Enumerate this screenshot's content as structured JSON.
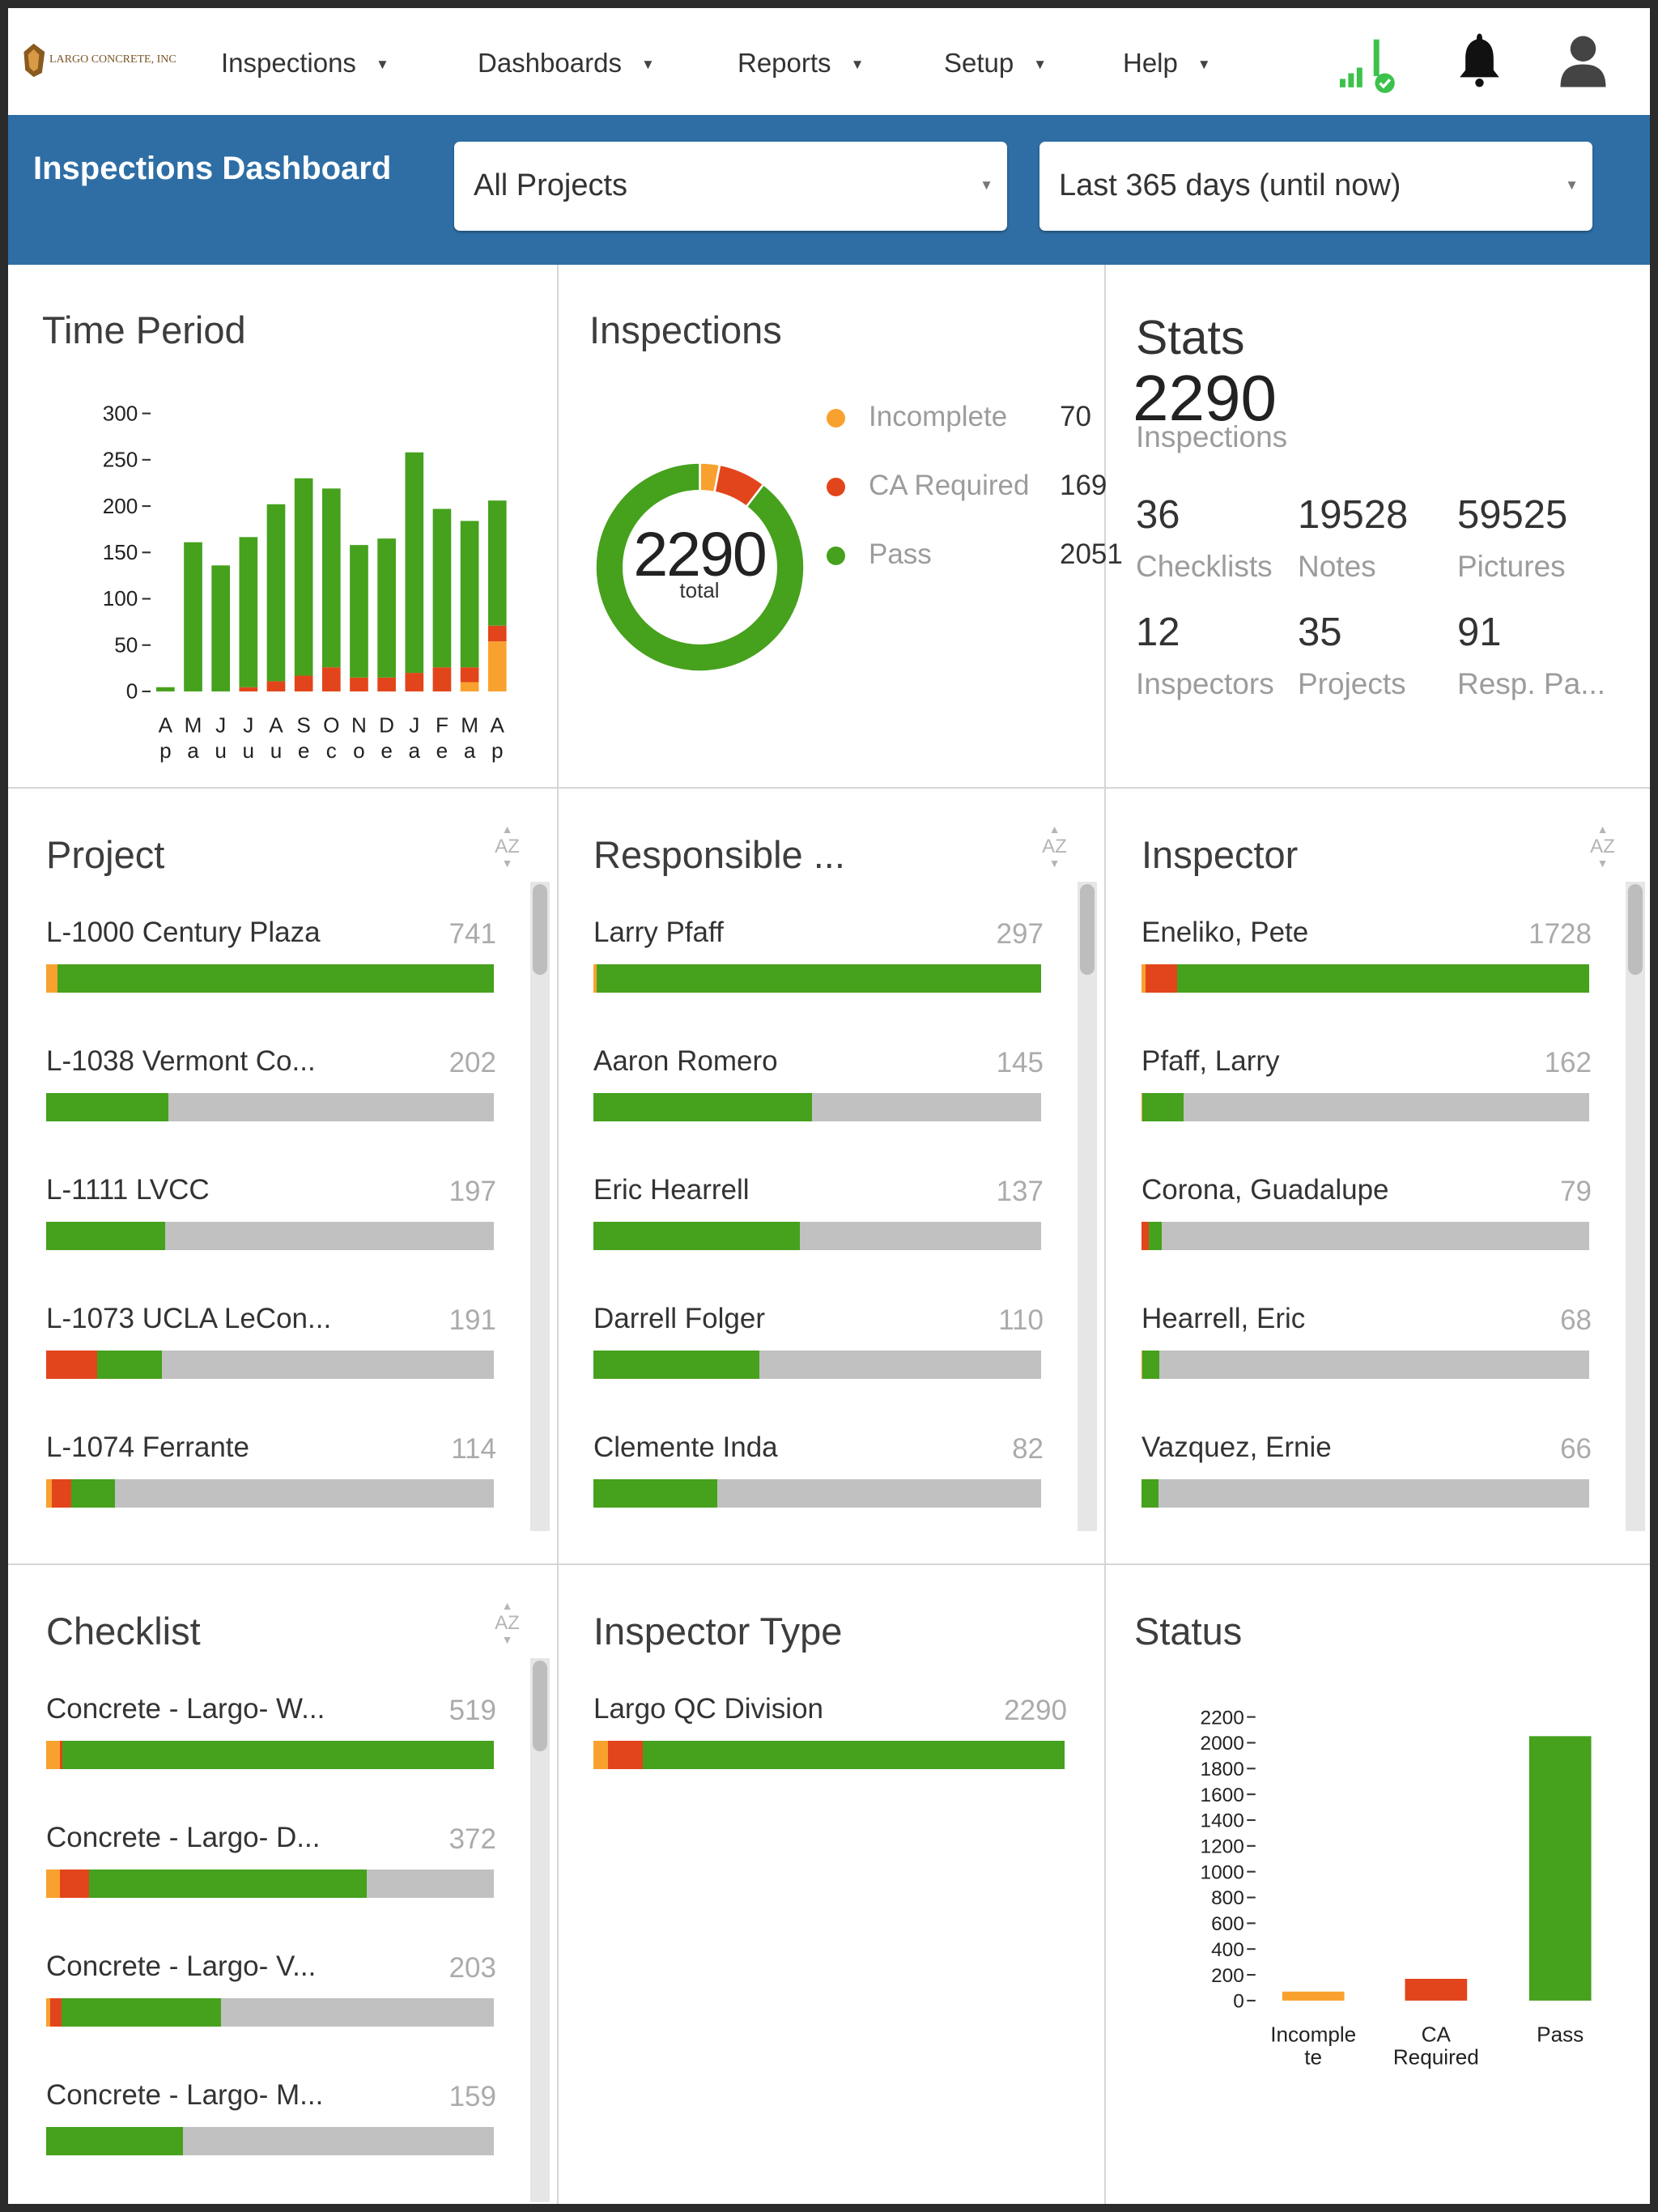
{
  "nav": {
    "logo_text": "LARGO CONCRETE, INC",
    "menu": [
      {
        "label": "Inspections"
      },
      {
        "label": "Dashboards"
      },
      {
        "label": "Reports"
      },
      {
        "label": "Setup"
      },
      {
        "label": "Help"
      }
    ],
    "icons": [
      "signal-check-icon",
      "bell-icon",
      "user-icon"
    ]
  },
  "header": {
    "title": "Inspections Dashboard",
    "project_select": "All Projects",
    "period_select": "Last 365 days (until now)"
  },
  "colors": {
    "incomplete": "#f9a12e",
    "ca_required": "#e2451b",
    "pass": "#46a11d",
    "bar_bg": "#c1c1c1",
    "header": "#2e6ea5"
  },
  "time_period": {
    "title": "Time Period",
    "chart_data": {
      "type": "bar",
      "stacked": true,
      "categories": [
        "Ap",
        "Ma",
        "Ju",
        "Ju",
        "Au",
        "Se",
        "Oc",
        "No",
        "De",
        "Ja",
        "Fe",
        "Ma",
        "Ap"
      ],
      "yticks": [
        0,
        50,
        100,
        150,
        200,
        250,
        300
      ],
      "ylim": [
        0,
        300
      ],
      "series": [
        {
          "name": "Incomplete",
          "values": [
            0,
            0,
            0,
            0,
            0,
            0,
            0,
            0,
            0,
            0,
            0,
            10,
            54
          ]
        },
        {
          "name": "CA Required",
          "values": [
            0,
            0,
            0,
            1,
            11,
            17,
            26,
            15,
            15,
            20,
            26,
            16,
            17
          ]
        },
        {
          "name": "Pass",
          "values": [
            2,
            161,
            136,
            162,
            191,
            213,
            193,
            143,
            150,
            238,
            171,
            158,
            135
          ]
        }
      ]
    }
  },
  "inspections": {
    "title": "Inspections",
    "total": "2290",
    "total_label": "total",
    "chart_data": {
      "type": "pie",
      "donut": true,
      "slices": [
        {
          "name": "Incomplete",
          "value": 70
        },
        {
          "name": "CA Required",
          "value": 169
        },
        {
          "name": "Pass",
          "value": 2051
        }
      ]
    },
    "legend": [
      {
        "label": "Incomplete",
        "value": "70"
      },
      {
        "label": "CA Required",
        "value": "169"
      },
      {
        "label": "Pass",
        "value": "2051"
      }
    ]
  },
  "stats": {
    "title": "Stats",
    "main_value": "2290",
    "main_label": "Inspections",
    "items": [
      {
        "value": "36",
        "label": "Checklists"
      },
      {
        "value": "19528",
        "label": "Notes"
      },
      {
        "value": "59525",
        "label": "Pictures"
      },
      {
        "value": "12",
        "label": "Inspectors"
      },
      {
        "value": "35",
        "label": "Projects"
      },
      {
        "value": "91",
        "label": "Resp. Pa..."
      }
    ]
  },
  "lists": [
    {
      "key": "project",
      "title": "Project",
      "sort_icon": "AZ",
      "max": 741,
      "items": [
        {
          "name": "L-1000 Century Plaza",
          "count": "741",
          "inc": 19,
          "ca": 0,
          "pass": 722
        },
        {
          "name": "L-1038 Vermont Co...",
          "count": "202",
          "inc": 0,
          "ca": 0,
          "pass": 202
        },
        {
          "name": "L-1111 LVCC",
          "count": "197",
          "inc": 0,
          "ca": 0,
          "pass": 197
        },
        {
          "name": "L-1073 UCLA LeCon...",
          "count": "191",
          "inc": 0,
          "ca": 85,
          "pass": 106
        },
        {
          "name": "L-1074 Ferrante",
          "count": "114",
          "inc": 10,
          "ca": 31,
          "pass": 73
        }
      ]
    },
    {
      "key": "responsible",
      "title": "Responsible ...",
      "sort_icon": "AZ",
      "max": 297,
      "items": [
        {
          "name": "Larry Pfaff",
          "count": "297",
          "inc": 2,
          "ca": 0,
          "pass": 295
        },
        {
          "name": "Aaron Romero",
          "count": "145",
          "inc": 0,
          "ca": 0,
          "pass": 145
        },
        {
          "name": "Eric Hearrell",
          "count": "137",
          "inc": 0,
          "ca": 0,
          "pass": 137
        },
        {
          "name": "Darrell Folger",
          "count": "110",
          "inc": 0,
          "ca": 0,
          "pass": 110
        },
        {
          "name": "Clemente Inda",
          "count": "82",
          "inc": 0,
          "ca": 0,
          "pass": 82
        }
      ]
    },
    {
      "key": "inspector",
      "title": "Inspector",
      "sort_icon": "AZ",
      "max": 1728,
      "items": [
        {
          "name": "Eneliko, Pete",
          "count": "1728",
          "inc": 16,
          "ca": 120,
          "pass": 1592
        },
        {
          "name": "Pfaff, Larry",
          "count": "162",
          "inc": 3,
          "ca": 0,
          "pass": 159
        },
        {
          "name": "Corona, Guadalupe",
          "count": "79",
          "inc": 0,
          "ca": 28,
          "pass": 51
        },
        {
          "name": "Hearrell, Eric",
          "count": "68",
          "inc": 2,
          "ca": 0,
          "pass": 66
        },
        {
          "name": "Vazquez, Ernie",
          "count": "66",
          "inc": 0,
          "ca": 0,
          "pass": 66
        }
      ]
    },
    {
      "key": "checklist",
      "title": "Checklist",
      "sort_icon": "AZ",
      "max": 519,
      "items": [
        {
          "name": "Concrete - Largo- W...",
          "count": "519",
          "inc": 16,
          "ca": 3,
          "pass": 500
        },
        {
          "name": "Concrete - Largo- D...",
          "count": "372",
          "inc": 16,
          "ca": 34,
          "pass": 322
        },
        {
          "name": "Concrete - Largo- V...",
          "count": "203",
          "inc": 5,
          "ca": 13,
          "pass": 185
        },
        {
          "name": "Concrete - Largo- M...",
          "count": "159",
          "inc": 0,
          "ca": 0,
          "pass": 159
        }
      ]
    },
    {
      "key": "inspector_type",
      "title": "Inspector Type",
      "max": 2290,
      "items": [
        {
          "name": "Largo QC Division",
          "count": "2290",
          "inc": 70,
          "ca": 169,
          "pass": 2051
        }
      ]
    }
  ],
  "status": {
    "title": "Status",
    "chart_data": {
      "type": "bar",
      "categories": [
        "Incomple te",
        "CA Required",
        "Pass"
      ],
      "values": [
        70,
        169,
        2051
      ],
      "yticks": [
        0,
        200,
        400,
        600,
        800,
        1000,
        1200,
        1400,
        1600,
        1800,
        2000,
        2200
      ],
      "ylim": [
        0,
        2200
      ]
    }
  }
}
